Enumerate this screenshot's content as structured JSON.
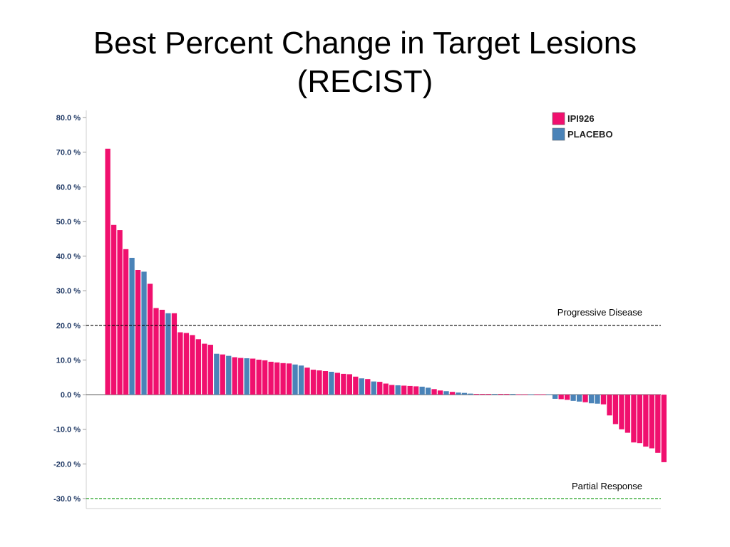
{
  "title": {
    "line1": "Best Percent Change in Target Lesions",
    "line2": "(RECIST)"
  },
  "colors": {
    "ipi926": "#f0106e",
    "placebo": "#4a83b8",
    "progressive_line": "#000000",
    "partial_line": "#22a022"
  },
  "chart_data": {
    "type": "bar",
    "title": "Best Percent Change in Target Lesions (RECIST)",
    "xlabel": "",
    "ylabel": "",
    "ylim": [
      -30,
      80
    ],
    "yticks": [
      80,
      70,
      60,
      50,
      40,
      30,
      20,
      10,
      0,
      -10,
      -20,
      -30
    ],
    "ytick_labels": [
      "80.0 %",
      "70.0 %",
      "60.0 %",
      "50.0 %",
      "40.0 %",
      "30.0 %",
      "20.0 %",
      "10.0 %",
      "0.0 %",
      "-10.0 %",
      "-20.0 %",
      "-30.0 %"
    ],
    "legend": {
      "placement": "top-right",
      "items": [
        {
          "name": "IPI926",
          "color": "#f0106e"
        },
        {
          "name": "PLACEBO",
          "color": "#4a83b8"
        }
      ]
    },
    "reference_lines": [
      {
        "value": 20,
        "label": "Progressive  Disease",
        "style": "dashed",
        "color": "#000000"
      },
      {
        "value": -30,
        "label": "Partial Response",
        "style": "dashed",
        "color": "#22a022"
      }
    ],
    "bars": [
      {
        "group": "IPI926",
        "value": 71
      },
      {
        "group": "IPI926",
        "value": 49
      },
      {
        "group": "IPI926",
        "value": 47.5
      },
      {
        "group": "IPI926",
        "value": 42
      },
      {
        "group": "PLACEBO",
        "value": 39.5
      },
      {
        "group": "IPI926",
        "value": 36
      },
      {
        "group": "PLACEBO",
        "value": 35.5
      },
      {
        "group": "IPI926",
        "value": 32
      },
      {
        "group": "IPI926",
        "value": 25
      },
      {
        "group": "IPI926",
        "value": 24.5
      },
      {
        "group": "PLACEBO",
        "value": 23.5
      },
      {
        "group": "IPI926",
        "value": 23.5
      },
      {
        "group": "IPI926",
        "value": 18
      },
      {
        "group": "IPI926",
        "value": 17.8
      },
      {
        "group": "IPI926",
        "value": 17.2
      },
      {
        "group": "IPI926",
        "value": 16
      },
      {
        "group": "IPI926",
        "value": 14.7
      },
      {
        "group": "IPI926",
        "value": 14.4
      },
      {
        "group": "PLACEBO",
        "value": 11.8
      },
      {
        "group": "IPI926",
        "value": 11.6
      },
      {
        "group": "PLACEBO",
        "value": 11.2
      },
      {
        "group": "IPI926",
        "value": 10.8
      },
      {
        "group": "IPI926",
        "value": 10.6
      },
      {
        "group": "PLACEBO",
        "value": 10.5
      },
      {
        "group": "IPI926",
        "value": 10.4
      },
      {
        "group": "IPI926",
        "value": 10.1
      },
      {
        "group": "IPI926",
        "value": 9.9
      },
      {
        "group": "IPI926",
        "value": 9.5
      },
      {
        "group": "IPI926",
        "value": 9.3
      },
      {
        "group": "IPI926",
        "value": 9.1
      },
      {
        "group": "IPI926",
        "value": 9.0
      },
      {
        "group": "PLACEBO",
        "value": 8.7
      },
      {
        "group": "PLACEBO",
        "value": 8.4
      },
      {
        "group": "IPI926",
        "value": 7.8
      },
      {
        "group": "IPI926",
        "value": 7.2
      },
      {
        "group": "IPI926",
        "value": 7.0
      },
      {
        "group": "IPI926",
        "value": 6.8
      },
      {
        "group": "PLACEBO",
        "value": 6.6
      },
      {
        "group": "IPI926",
        "value": 6.3
      },
      {
        "group": "IPI926",
        "value": 6.0
      },
      {
        "group": "IPI926",
        "value": 5.9
      },
      {
        "group": "IPI926",
        "value": 5.2
      },
      {
        "group": "PLACEBO",
        "value": 4.7
      },
      {
        "group": "IPI926",
        "value": 4.5
      },
      {
        "group": "PLACEBO",
        "value": 3.8
      },
      {
        "group": "IPI926",
        "value": 3.7
      },
      {
        "group": "IPI926",
        "value": 3.2
      },
      {
        "group": "IPI926",
        "value": 2.8
      },
      {
        "group": "PLACEBO",
        "value": 2.7
      },
      {
        "group": "IPI926",
        "value": 2.6
      },
      {
        "group": "IPI926",
        "value": 2.5
      },
      {
        "group": "IPI926",
        "value": 2.4
      },
      {
        "group": "PLACEBO",
        "value": 2.3
      },
      {
        "group": "PLACEBO",
        "value": 2.0
      },
      {
        "group": "IPI926",
        "value": 1.6
      },
      {
        "group": "IPI926",
        "value": 1.2
      },
      {
        "group": "PLACEBO",
        "value": 1.0
      },
      {
        "group": "IPI926",
        "value": 0.8
      },
      {
        "group": "PLACEBO",
        "value": 0.6
      },
      {
        "group": "PLACEBO",
        "value": 0.5
      },
      {
        "group": "PLACEBO",
        "value": 0.3
      },
      {
        "group": "IPI926",
        "value": 0.2
      },
      {
        "group": "IPI926",
        "value": 0.2
      },
      {
        "group": "IPI926",
        "value": 0.2
      },
      {
        "group": "PLACEBO",
        "value": 0.2
      },
      {
        "group": "IPI926",
        "value": 0.2
      },
      {
        "group": "IPI926",
        "value": 0.2
      },
      {
        "group": "PLACEBO",
        "value": 0.2
      },
      {
        "group": "IPI926",
        "value": 0.1
      },
      {
        "group": "IPI926",
        "value": 0.1
      },
      {
        "group": "PLACEBO",
        "value": 0.1
      },
      {
        "group": "IPI926",
        "value": 0.1
      },
      {
        "group": "IPI926",
        "value": 0.1
      },
      {
        "group": "PLACEBO",
        "value": 0.1
      },
      {
        "group": "PLACEBO",
        "value": -1.2
      },
      {
        "group": "IPI926",
        "value": -1.3
      },
      {
        "group": "IPI926",
        "value": -1.5
      },
      {
        "group": "PLACEBO",
        "value": -1.8
      },
      {
        "group": "PLACEBO",
        "value": -2.0
      },
      {
        "group": "IPI926",
        "value": -2.2
      },
      {
        "group": "PLACEBO",
        "value": -2.5
      },
      {
        "group": "PLACEBO",
        "value": -2.6
      },
      {
        "group": "IPI926",
        "value": -2.8
      },
      {
        "group": "IPI926",
        "value": -6.0
      },
      {
        "group": "IPI926",
        "value": -8.5
      },
      {
        "group": "IPI926",
        "value": -10.0
      },
      {
        "group": "IPI926",
        "value": -11.0
      },
      {
        "group": "IPI926",
        "value": -13.8
      },
      {
        "group": "IPI926",
        "value": -14.0
      },
      {
        "group": "IPI926",
        "value": -15.0
      },
      {
        "group": "IPI926",
        "value": -15.5
      },
      {
        "group": "IPI926",
        "value": -16.8
      },
      {
        "group": "IPI926",
        "value": -19.5
      }
    ]
  }
}
